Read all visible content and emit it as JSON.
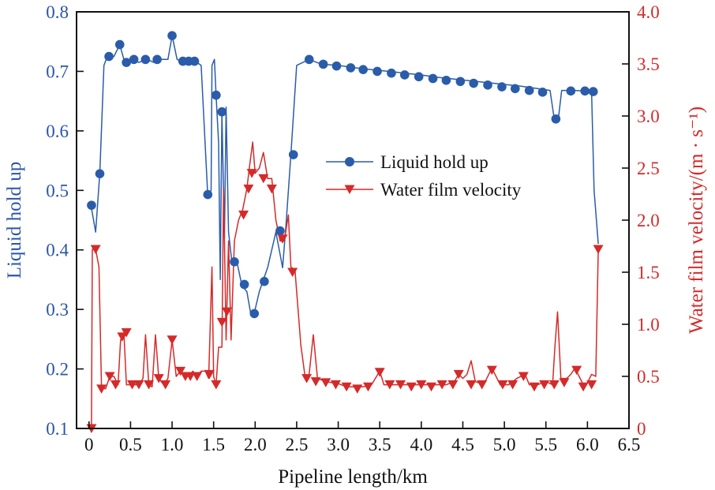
{
  "chart_data": {
    "type": "line",
    "xlabel": "Pipeline length/km",
    "ylabel_left": "Liquid hold up",
    "ylabel_right": "Water film velocity/(m · s⁻¹)",
    "xlim": [
      -0.15,
      6.5
    ],
    "ylim_left": [
      0.1,
      0.8
    ],
    "ylim_right": [
      0,
      4.0
    ],
    "x_ticks": [
      "0",
      "0.5",
      "1.0",
      "1.5",
      "2.0",
      "2.5",
      "3.0",
      "3.5",
      "4.0",
      "4.5",
      "5.0",
      "5.5",
      "6.0",
      "6.5"
    ],
    "y_left_ticks": [
      "0.1",
      "0.2",
      "0.3",
      "0.4",
      "0.5",
      "0.6",
      "0.7",
      "0.8"
    ],
    "y_right_ticks": [
      "0",
      "0.5",
      "1.0",
      "1.5",
      "2.0",
      "2.5",
      "3.0",
      "3.5",
      "4.0"
    ],
    "legend": [
      "Liquid hold up",
      "Water film velocity"
    ],
    "colors": {
      "holdup": "#2a5caa",
      "velocity": "#d42a2a"
    },
    "series": [
      {
        "name": "Liquid hold up",
        "axis": "left",
        "line": [
          [
            0.03,
            0.47
          ],
          [
            0.08,
            0.43
          ],
          [
            0.13,
            0.53
          ],
          [
            0.18,
            0.71
          ],
          [
            0.22,
            0.725
          ],
          [
            0.3,
            0.725
          ],
          [
            0.37,
            0.745
          ],
          [
            0.42,
            0.72
          ],
          [
            0.5,
            0.72
          ],
          [
            0.6,
            0.715
          ],
          [
            0.7,
            0.72
          ],
          [
            0.78,
            0.715
          ],
          [
            0.85,
            0.72
          ],
          [
            0.95,
            0.72
          ],
          [
            1.0,
            0.76
          ],
          [
            1.06,
            0.72
          ],
          [
            1.14,
            0.715
          ],
          [
            1.22,
            0.715
          ],
          [
            1.3,
            0.715
          ],
          [
            1.35,
            0.71
          ],
          [
            1.43,
            0.49
          ],
          [
            1.47,
            0.5
          ],
          [
            1.48,
            0.71
          ],
          [
            1.51,
            0.72
          ],
          [
            1.53,
            0.66
          ],
          [
            1.56,
            0.58
          ],
          [
            1.58,
            0.35
          ],
          [
            1.6,
            0.63
          ],
          [
            1.63,
            0.42
          ],
          [
            1.65,
            0.64
          ],
          [
            1.68,
            0.43
          ],
          [
            1.72,
            0.38
          ],
          [
            1.78,
            0.38
          ],
          [
            1.84,
            0.34
          ],
          [
            1.9,
            0.33
          ],
          [
            1.95,
            0.29
          ],
          [
            2.0,
            0.3
          ],
          [
            2.05,
            0.33
          ],
          [
            2.1,
            0.35
          ],
          [
            2.15,
            0.37
          ],
          [
            2.25,
            0.43
          ],
          [
            2.33,
            0.37
          ],
          [
            2.37,
            0.44
          ],
          [
            2.43,
            0.56
          ],
          [
            2.5,
            0.71
          ],
          [
            2.65,
            0.72
          ],
          [
            2.8,
            0.712
          ],
          [
            3.0,
            0.71
          ],
          [
            3.2,
            0.706
          ],
          [
            3.4,
            0.703
          ],
          [
            3.6,
            0.7
          ],
          [
            3.8,
            0.697
          ],
          [
            4.0,
            0.694
          ],
          [
            4.2,
            0.69
          ],
          [
            4.4,
            0.687
          ],
          [
            4.6,
            0.684
          ],
          [
            4.8,
            0.681
          ],
          [
            5.0,
            0.678
          ],
          [
            5.2,
            0.675
          ],
          [
            5.4,
            0.671
          ],
          [
            5.55,
            0.668
          ],
          [
            5.6,
            0.62
          ],
          [
            5.65,
            0.62
          ],
          [
            5.69,
            0.668
          ],
          [
            5.75,
            0.668
          ],
          [
            5.85,
            0.668
          ],
          [
            5.95,
            0.667
          ],
          [
            6.05,
            0.666
          ],
          [
            6.08,
            0.5
          ],
          [
            6.13,
            0.41
          ]
        ],
        "markers": [
          [
            0.03,
            0.475
          ],
          [
            0.13,
            0.528
          ],
          [
            0.24,
            0.725
          ],
          [
            0.37,
            0.745
          ],
          [
            0.45,
            0.715
          ],
          [
            0.54,
            0.72
          ],
          [
            0.68,
            0.72
          ],
          [
            0.82,
            0.72
          ],
          [
            1.0,
            0.76
          ],
          [
            1.13,
            0.717
          ],
          [
            1.2,
            0.717
          ],
          [
            1.27,
            0.717
          ],
          [
            1.43,
            0.493
          ],
          [
            1.53,
            0.66
          ],
          [
            1.6,
            0.632
          ],
          [
            1.75,
            0.38
          ],
          [
            1.87,
            0.342
          ],
          [
            1.99,
            0.293
          ],
          [
            2.11,
            0.347
          ],
          [
            2.3,
            0.432
          ],
          [
            2.46,
            0.56
          ],
          [
            2.65,
            0.72
          ],
          [
            2.82,
            0.712
          ],
          [
            2.98,
            0.709
          ],
          [
            3.15,
            0.706
          ],
          [
            3.3,
            0.703
          ],
          [
            3.47,
            0.7
          ],
          [
            3.64,
            0.697
          ],
          [
            3.8,
            0.694
          ],
          [
            3.97,
            0.691
          ],
          [
            4.14,
            0.688
          ],
          [
            4.3,
            0.685
          ],
          [
            4.47,
            0.683
          ],
          [
            4.63,
            0.68
          ],
          [
            4.8,
            0.677
          ],
          [
            4.97,
            0.674
          ],
          [
            5.13,
            0.671
          ],
          [
            5.3,
            0.668
          ],
          [
            5.46,
            0.665
          ],
          [
            5.62,
            0.62
          ],
          [
            5.8,
            0.667
          ],
          [
            5.97,
            0.667
          ],
          [
            6.07,
            0.666
          ]
        ]
      },
      {
        "name": "Water film velocity",
        "axis": "right",
        "line": [
          [
            0.03,
            0.0
          ],
          [
            0.04,
            1.72
          ],
          [
            0.08,
            1.72
          ],
          [
            0.12,
            1.55
          ],
          [
            0.15,
            0.4
          ],
          [
            0.2,
            0.38
          ],
          [
            0.25,
            0.5
          ],
          [
            0.3,
            0.5
          ],
          [
            0.35,
            0.42
          ],
          [
            0.38,
            0.85
          ],
          [
            0.42,
            0.92
          ],
          [
            0.45,
            0.42
          ],
          [
            0.5,
            0.42
          ],
          [
            0.55,
            0.42
          ],
          [
            0.6,
            0.42
          ],
          [
            0.65,
            0.48
          ],
          [
            0.68,
            0.9
          ],
          [
            0.72,
            0.42
          ],
          [
            0.76,
            0.4
          ],
          [
            0.8,
            0.9
          ],
          [
            0.84,
            0.48
          ],
          [
            0.9,
            0.42
          ],
          [
            0.95,
            0.48
          ],
          [
            1.0,
            0.85
          ],
          [
            1.05,
            0.5
          ],
          [
            1.1,
            0.55
          ],
          [
            1.15,
            0.5
          ],
          [
            1.2,
            0.5
          ],
          [
            1.25,
            0.55
          ],
          [
            1.3,
            0.5
          ],
          [
            1.35,
            0.55
          ],
          [
            1.4,
            0.55
          ],
          [
            1.44,
            0.48
          ],
          [
            1.48,
            1.55
          ],
          [
            1.5,
            0.5
          ],
          [
            1.53,
            0.42
          ],
          [
            1.56,
            0.78
          ],
          [
            1.6,
            0.78
          ],
          [
            1.62,
            2.3
          ],
          [
            1.65,
            0.85
          ],
          [
            1.68,
            1.8
          ],
          [
            1.71,
            0.85
          ],
          [
            1.75,
            1.8
          ],
          [
            1.8,
            2.0
          ],
          [
            1.85,
            2.1
          ],
          [
            1.9,
            2.3
          ],
          [
            1.93,
            2.5
          ],
          [
            1.97,
            2.75
          ],
          [
            2.0,
            2.45
          ],
          [
            2.05,
            2.5
          ],
          [
            2.1,
            2.65
          ],
          [
            2.15,
            2.4
          ],
          [
            2.2,
            2.4
          ],
          [
            2.25,
            2.0
          ],
          [
            2.3,
            1.8
          ],
          [
            2.35,
            1.8
          ],
          [
            2.4,
            2.05
          ],
          [
            2.43,
            1.55
          ],
          [
            2.48,
            1.52
          ],
          [
            2.55,
            0.8
          ],
          [
            2.6,
            0.5
          ],
          [
            2.65,
            0.52
          ],
          [
            2.7,
            0.9
          ],
          [
            2.75,
            0.48
          ],
          [
            2.85,
            0.45
          ],
          [
            3.0,
            0.43
          ],
          [
            3.1,
            0.4
          ],
          [
            3.2,
            0.4
          ],
          [
            3.3,
            0.4
          ],
          [
            3.4,
            0.42
          ],
          [
            3.5,
            0.55
          ],
          [
            3.55,
            0.42
          ],
          [
            3.65,
            0.42
          ],
          [
            3.75,
            0.42
          ],
          [
            3.9,
            0.42
          ],
          [
            4.1,
            0.42
          ],
          [
            4.3,
            0.42
          ],
          [
            4.4,
            0.45
          ],
          [
            4.45,
            0.52
          ],
          [
            4.5,
            0.48
          ],
          [
            4.55,
            0.52
          ],
          [
            4.6,
            0.65
          ],
          [
            4.65,
            0.45
          ],
          [
            4.75,
            0.42
          ],
          [
            4.85,
            0.58
          ],
          [
            4.95,
            0.42
          ],
          [
            5.05,
            0.42
          ],
          [
            5.15,
            0.48
          ],
          [
            5.25,
            0.52
          ],
          [
            5.3,
            0.42
          ],
          [
            5.4,
            0.42
          ],
          [
            5.5,
            0.45
          ],
          [
            5.58,
            0.42
          ],
          [
            5.61,
            0.8
          ],
          [
            5.64,
            1.12
          ],
          [
            5.68,
            0.48
          ],
          [
            5.75,
            0.48
          ],
          [
            5.8,
            0.52
          ],
          [
            5.85,
            0.58
          ],
          [
            5.9,
            0.5
          ],
          [
            5.95,
            0.42
          ],
          [
            6.0,
            0.44
          ],
          [
            6.05,
            0.52
          ],
          [
            6.1,
            0.5
          ],
          [
            6.13,
            1.72
          ],
          [
            6.16,
            1.75
          ]
        ],
        "markers": [
          [
            0.03,
            0.0
          ],
          [
            0.08,
            1.72
          ],
          [
            0.15,
            0.38
          ],
          [
            0.25,
            0.5
          ],
          [
            0.32,
            0.42
          ],
          [
            0.4,
            0.88
          ],
          [
            0.45,
            0.92
          ],
          [
            0.52,
            0.42
          ],
          [
            0.6,
            0.42
          ],
          [
            0.72,
            0.42
          ],
          [
            0.84,
            0.48
          ],
          [
            0.92,
            0.42
          ],
          [
            1.0,
            0.85
          ],
          [
            1.1,
            0.55
          ],
          [
            1.16,
            0.5
          ],
          [
            1.22,
            0.5
          ],
          [
            1.3,
            0.5
          ],
          [
            1.45,
            0.52
          ],
          [
            1.53,
            0.42
          ],
          [
            1.6,
            1.02
          ],
          [
            1.66,
            1.12
          ],
          [
            1.86,
            2.05
          ],
          [
            1.92,
            2.3
          ],
          [
            1.96,
            2.45
          ],
          [
            2.1,
            2.4
          ],
          [
            2.2,
            2.3
          ],
          [
            2.33,
            1.82
          ],
          [
            2.45,
            1.5
          ],
          [
            2.62,
            0.48
          ],
          [
            2.73,
            0.45
          ],
          [
            2.85,
            0.44
          ],
          [
            2.97,
            0.42
          ],
          [
            3.1,
            0.4
          ],
          [
            3.23,
            0.38
          ],
          [
            3.36,
            0.4
          ],
          [
            3.5,
            0.54
          ],
          [
            3.62,
            0.42
          ],
          [
            3.75,
            0.42
          ],
          [
            3.88,
            0.4
          ],
          [
            4.0,
            0.42
          ],
          [
            4.12,
            0.4
          ],
          [
            4.25,
            0.42
          ],
          [
            4.38,
            0.42
          ],
          [
            4.45,
            0.52
          ],
          [
            4.6,
            0.42
          ],
          [
            4.73,
            0.42
          ],
          [
            4.85,
            0.56
          ],
          [
            4.98,
            0.42
          ],
          [
            5.1,
            0.42
          ],
          [
            5.23,
            0.5
          ],
          [
            5.36,
            0.4
          ],
          [
            5.48,
            0.42
          ],
          [
            5.6,
            0.42
          ],
          [
            5.72,
            0.44
          ],
          [
            5.87,
            0.56
          ],
          [
            5.95,
            0.4
          ],
          [
            6.05,
            0.42
          ],
          [
            6.13,
            1.72
          ]
        ]
      }
    ]
  }
}
